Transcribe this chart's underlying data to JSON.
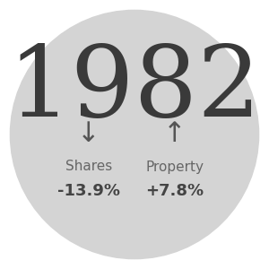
{
  "year": "1982",
  "circle_color": "#d4d4d4",
  "fig_bg": "#ffffff",
  "year_color": "#3a3a3a",
  "year_fontsize": 80,
  "arrow_color": "#555555",
  "arrow_fontsize": 22,
  "label_color": "#666666",
  "label_fontsize": 11,
  "value_color": "#444444",
  "value_fontsize": 13,
  "left_arrow": "↓",
  "right_arrow": "↑",
  "left_label": "Shares",
  "right_label": "Property",
  "left_value": "-13.9%",
  "right_value": "+7.8%"
}
